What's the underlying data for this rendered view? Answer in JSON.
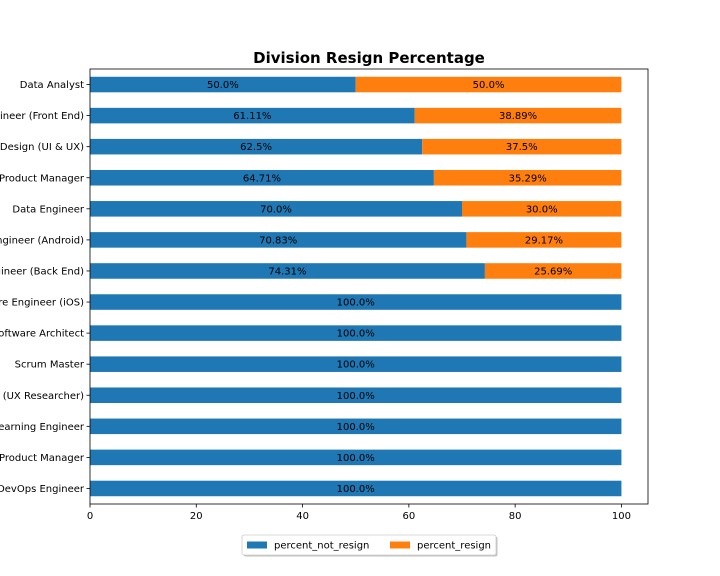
{
  "chart_data": {
    "type": "bar",
    "orientation": "horizontal",
    "stacked": true,
    "title": "Division Resign Percentage",
    "xlabel": "",
    "ylabel": "",
    "xlim": [
      0,
      105
    ],
    "xticks": [
      0,
      20,
      40,
      60,
      80,
      100
    ],
    "grid": false,
    "legend_position": "bottom-center",
    "categories": [
      "Data Analyst",
      "Software Engineer (Front End)",
      "Product Design (UI & UX)",
      "Product Manager",
      "Data Engineer",
      "Software Engineer (Android)",
      "Software Engineer (Back End)",
      "Software Engineer (iOS)",
      "Software Architect",
      "Scrum Master",
      "Product Design (UX Researcher)",
      "Machine Learning Engineer",
      "Digital Product Manager",
      "DevOps Engineer"
    ],
    "series": [
      {
        "name": "percent_not_resign",
        "color": "#1f77b4",
        "values": [
          50.0,
          61.11,
          62.5,
          64.71,
          70.0,
          70.83,
          74.31,
          100.0,
          100.0,
          100.0,
          100.0,
          100.0,
          100.0,
          100.0
        ],
        "labels": [
          "50.0%",
          "61.11%",
          "62.5%",
          "64.71%",
          "70.0%",
          "70.83%",
          "74.31%",
          "100.0%",
          "100.0%",
          "100.0%",
          "100.0%",
          "100.0%",
          "100.0%",
          "100.0%"
        ]
      },
      {
        "name": "percent_resign",
        "color": "#ff7f0e",
        "values": [
          50.0,
          38.89,
          37.5,
          35.29,
          30.0,
          29.17,
          25.69,
          0,
          0,
          0,
          0,
          0,
          0,
          0
        ],
        "labels": [
          "50.0%",
          "38.89%",
          "37.5%",
          "35.29%",
          "30.0%",
          "29.17%",
          "25.69%",
          "",
          "",
          "",
          "",
          "",
          "",
          ""
        ]
      }
    ]
  }
}
